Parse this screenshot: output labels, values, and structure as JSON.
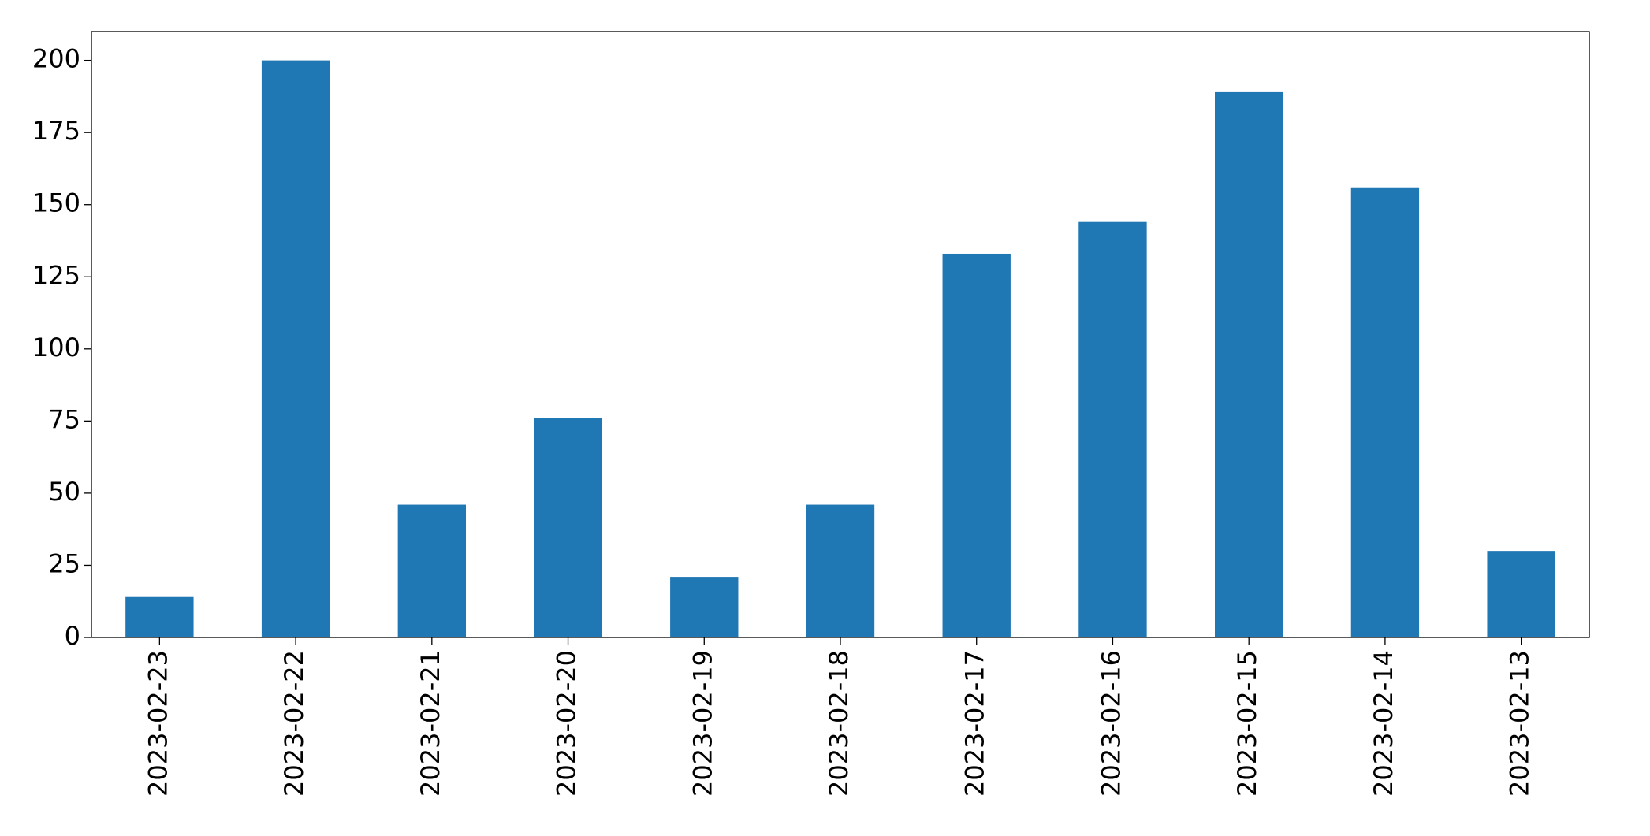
{
  "chart_data": {
    "type": "bar",
    "categories": [
      "2023-02-23",
      "2023-02-22",
      "2023-02-21",
      "2023-02-20",
      "2023-02-19",
      "2023-02-18",
      "2023-02-17",
      "2023-02-16",
      "2023-02-15",
      "2023-02-14",
      "2023-02-13"
    ],
    "values": [
      14,
      200,
      46,
      76,
      21,
      46,
      133,
      144,
      189,
      156,
      30
    ],
    "color": "#1f77b4",
    "ylim": [
      0,
      210
    ],
    "yticks": [
      0,
      25,
      50,
      75,
      100,
      125,
      150,
      175,
      200
    ],
    "grid": false
  }
}
